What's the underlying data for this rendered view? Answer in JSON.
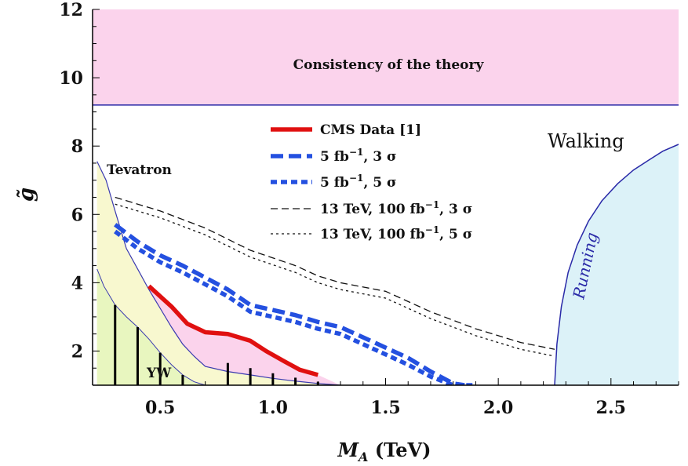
{
  "chart_data": {
    "type": "line",
    "title": "",
    "xlabel_main": "M",
    "xlabel_sub": "A",
    "xlabel_unit": " (TeV)",
    "ylabel": "g̃",
    "xlim": [
      0.2,
      2.8
    ],
    "ylim": [
      1,
      12
    ],
    "xticks": [
      0.5,
      1.0,
      1.5,
      2.0,
      2.5
    ],
    "xtick_labels": [
      "0.5",
      "1.0",
      "1.5",
      "2.0",
      "2.5"
    ],
    "yticks": [
      2,
      4,
      6,
      8,
      10,
      12
    ],
    "ytick_labels": [
      "2",
      "4",
      "6",
      "8",
      "10",
      "12"
    ],
    "grid": false,
    "legend_position": "top-center",
    "legend": [
      {
        "label": "CMS Data [1]",
        "style": "solid-thick",
        "color": "#e01010"
      },
      {
        "label": "5 fb",
        "sup": "−1",
        "suffix": ", 3 σ",
        "style": "dashed-long-thick",
        "color": "#2450e0"
      },
      {
        "label": "5 fb",
        "sup": "−1",
        "suffix": ", 5 σ",
        "style": "dashed-short-thick",
        "color": "#2450e0"
      },
      {
        "label": "13 TeV, 100 fb",
        "sup": "−1",
        "suffix": ", 3 σ",
        "style": "dashed-long-thin",
        "color": "#111111"
      },
      {
        "label": "13 TeV, 100 fb",
        "sup": "−1",
        "suffix": ", 5 σ",
        "style": "dotted-thin",
        "color": "#111111"
      }
    ],
    "series": [
      {
        "name": "CMS Data [1]",
        "color": "#e01010",
        "x": [
          0.45,
          0.55,
          0.62,
          0.7,
          0.8,
          0.9,
          0.97,
          1.05,
          1.12,
          1.2
        ],
        "y": [
          3.9,
          3.3,
          2.8,
          2.55,
          2.5,
          2.3,
          2.0,
          1.7,
          1.45,
          1.3
        ]
      },
      {
        "name": "5 fb-1, 3 sigma",
        "color": "#2450e0",
        "x": [
          0.3,
          0.4,
          0.5,
          0.6,
          0.7,
          0.8,
          0.9,
          1.0,
          1.1,
          1.2,
          1.3,
          1.4,
          1.5,
          1.6,
          1.7,
          1.8,
          1.85
        ],
        "y": [
          5.7,
          5.2,
          4.8,
          4.5,
          4.15,
          3.8,
          3.35,
          3.2,
          3.05,
          2.85,
          2.7,
          2.4,
          2.1,
          1.8,
          1.4,
          1.05,
          0.9
        ]
      },
      {
        "name": "5 fb-1, 5 sigma",
        "color": "#2450e0",
        "x": [
          0.3,
          0.4,
          0.5,
          0.6,
          0.7,
          0.8,
          0.9,
          1.0,
          1.1,
          1.2,
          1.3,
          1.4,
          1.5,
          1.6,
          1.7,
          1.8,
          1.9
        ],
        "y": [
          5.5,
          5.0,
          4.6,
          4.3,
          3.95,
          3.6,
          3.15,
          3.0,
          2.85,
          2.65,
          2.5,
          2.2,
          1.9,
          1.6,
          1.25,
          1.0,
          0.85
        ]
      },
      {
        "name": "13 TeV, 100 fb-1, 3 sigma",
        "color": "#111111",
        "x": [
          0.3,
          0.5,
          0.7,
          0.9,
          1.1,
          1.2,
          1.3,
          1.5,
          1.7,
          1.9,
          2.1,
          2.25
        ],
        "y": [
          6.5,
          6.1,
          5.6,
          4.95,
          4.5,
          4.2,
          4.0,
          3.75,
          3.15,
          2.65,
          2.25,
          2.05
        ]
      },
      {
        "name": "13 TeV, 100 fb-1, 5 sigma",
        "color": "#111111",
        "x": [
          0.3,
          0.5,
          0.7,
          0.9,
          1.1,
          1.2,
          1.3,
          1.5,
          1.7,
          1.9,
          2.1,
          2.25
        ],
        "y": [
          6.3,
          5.9,
          5.4,
          4.75,
          4.3,
          4.0,
          3.8,
          3.55,
          2.95,
          2.45,
          2.05,
          1.85
        ]
      }
    ],
    "regions": {
      "consistency": {
        "label": "Consistency of the theory",
        "y_min": 9.2,
        "y_max": 12,
        "color": "#fbd3ec"
      },
      "tevatron": {
        "label": "Tevatron",
        "color": "#f8f8cf",
        "top_x": [
          0.22,
          0.26,
          0.3,
          0.35,
          0.4,
          0.45,
          0.5,
          0.55,
          0.6,
          0.65,
          0.7,
          0.8,
          0.9,
          1.0,
          1.1,
          1.2,
          1.3
        ],
        "top_y": [
          7.55,
          7.0,
          6.1,
          5.0,
          4.4,
          3.8,
          3.25,
          2.7,
          2.2,
          1.85,
          1.55,
          1.4,
          1.3,
          1.2,
          1.12,
          1.05,
          1.0
        ]
      },
      "yw": {
        "label": "YW",
        "color": "#e8f6bf",
        "top_x": [
          0.22,
          0.25,
          0.3,
          0.35,
          0.4,
          0.45,
          0.5,
          0.55,
          0.6,
          0.65,
          0.7
        ],
        "top_y": [
          4.4,
          3.9,
          3.35,
          3.0,
          2.7,
          2.35,
          1.95,
          1.6,
          1.3,
          1.1,
          1.0
        ]
      },
      "excluded": {
        "color": "#fbd3ec"
      },
      "walking": {
        "label": "Walking",
        "color": "#dcf2f8"
      },
      "running": {
        "label": "Running"
      }
    },
    "yw_hatch_x": [
      0.3,
      0.4,
      0.5,
      0.6,
      0.7,
      0.8,
      0.9,
      1.0,
      1.1,
      1.2,
      1.3
    ],
    "running_boundary": {
      "x": [
        2.25,
        2.26,
        2.28,
        2.31,
        2.35,
        2.4,
        2.46,
        2.53,
        2.6,
        2.67,
        2.73,
        2.8
      ],
      "y": [
        1.0,
        2.2,
        3.3,
        4.3,
        5.1,
        5.8,
        6.4,
        6.9,
        7.3,
        7.6,
        7.85,
        8.05
      ]
    }
  }
}
